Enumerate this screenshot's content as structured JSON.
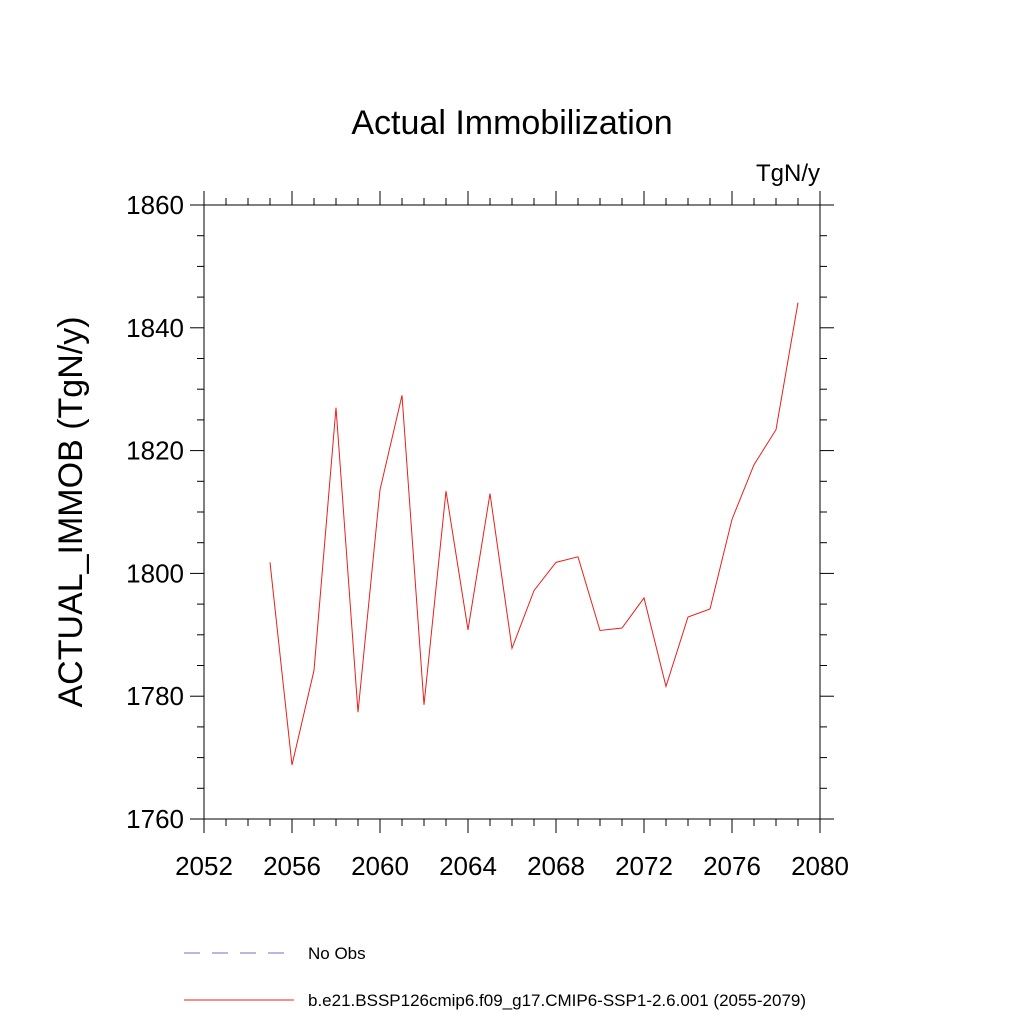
{
  "chart_data": {
    "type": "line",
    "title": "Actual Immobilization",
    "units_label": "TgN/y",
    "xlabel": "",
    "ylabel": "ACTUAL_IMMOB  (TgN/y)",
    "xlim": [
      2052,
      2080
    ],
    "ylim": [
      1760,
      1860
    ],
    "x_ticks": [
      2052,
      2056,
      2060,
      2064,
      2068,
      2072,
      2076,
      2080
    ],
    "y_ticks": [
      1760,
      1780,
      1800,
      1820,
      1840,
      1860
    ],
    "x_minor_step": 1,
    "y_minor_step": 5,
    "grid": false,
    "legend_position": "bottom",
    "series": [
      {
        "name": "No Obs",
        "color": "#7b68c8",
        "dash": "dashed",
        "x": [],
        "values": []
      },
      {
        "name": "b.e21.BSSP126cmip6.f09_g17.CMIP6-SSP1-2.6.001 (2055-2079)",
        "color": "#e8201c",
        "dash": "solid",
        "x": [
          2055,
          2056,
          2057,
          2058,
          2059,
          2060,
          2061,
          2062,
          2063,
          2064,
          2065,
          2066,
          2067,
          2068,
          2069,
          2070,
          2071,
          2072,
          2073,
          2074,
          2075,
          2076,
          2077,
          2078,
          2079
        ],
        "values": [
          1801.8,
          1768.8,
          1784.2,
          1827.0,
          1777.4,
          1813.6,
          1829.0,
          1778.6,
          1813.4,
          1790.8,
          1813.0,
          1787.8,
          1797.2,
          1801.8,
          1802.7,
          1790.7,
          1791.1,
          1796.0,
          1781.6,
          1792.9,
          1794.2,
          1808.8,
          1817.7,
          1823.4,
          1844.1
        ]
      }
    ]
  }
}
